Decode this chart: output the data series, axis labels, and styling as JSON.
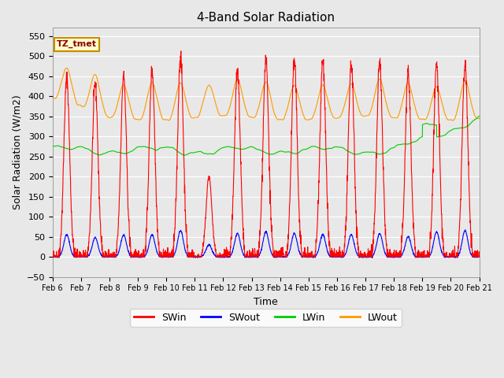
{
  "title": "4-Band Solar Radiation",
  "xlabel": "Time",
  "ylabel": "Solar Radiation (W/m2)",
  "ylim": [
    -50,
    570
  ],
  "yticks": [
    -50,
    0,
    50,
    100,
    150,
    200,
    250,
    300,
    350,
    400,
    450,
    500,
    550
  ],
  "plot_bg_color": "#e8e8e8",
  "annotation_text": "TZ_tmet",
  "annotation_box_color": "#ffffcc",
  "annotation_border_color": "#cc8800",
  "legend_entries": [
    "SWin",
    "SWout",
    "LWin",
    "LWout"
  ],
  "legend_colors": [
    "#ff0000",
    "#0000ff",
    "#00cc00",
    "#ff9900"
  ],
  "line_colors": {
    "SWin": "#ff0000",
    "SWout": "#0000ff",
    "LWin": "#00cc00",
    "LWout": "#ff9900"
  },
  "day_peaks_SWin": [
    447,
    430,
    450,
    465,
    500,
    200,
    465,
    490,
    490,
    490,
    480,
    485,
    460,
    480,
    480
  ],
  "swout_peaks": [
    55,
    48,
    54,
    55,
    65,
    30,
    58,
    62,
    58,
    55,
    55,
    58,
    50,
    62,
    65
  ],
  "lwin_base": 265,
  "lwout_base": 345,
  "n_days": 15,
  "start_day": 6,
  "end_day": 21,
  "figsize": [
    6.4,
    4.8
  ],
  "dpi": 100
}
